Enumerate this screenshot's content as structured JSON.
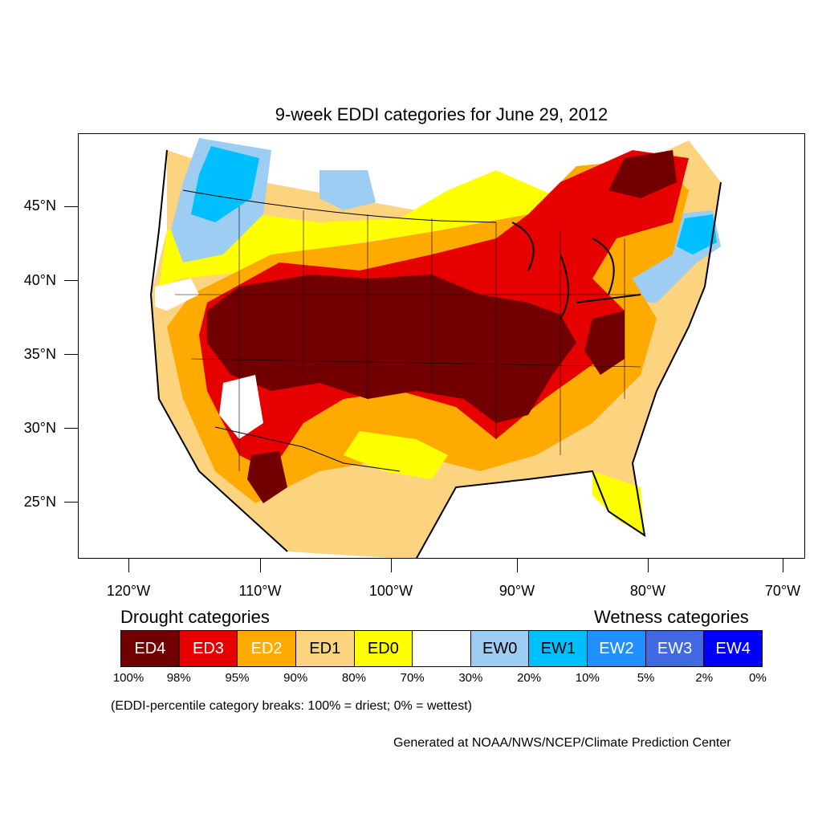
{
  "title": "9-week EDDI categories for June 29, 2012",
  "lat_labels": [
    "45°N",
    "40°N",
    "35°N",
    "30°N",
    "25°N"
  ],
  "lon_labels": [
    "120°W",
    "110°W",
    "100°W",
    "90°W",
    "80°W",
    "70°W"
  ],
  "legend": {
    "drought_heading": "Drought categories",
    "wetness_heading": "Wetness categories",
    "categories": [
      {
        "label": "ED4",
        "color": "#730000",
        "text_color": "#ffffff"
      },
      {
        "label": "ED3",
        "color": "#e60000",
        "text_color": "#ffffff"
      },
      {
        "label": "ED2",
        "color": "#ffaa00",
        "text_color": "#ffffff"
      },
      {
        "label": "ED1",
        "color": "#fcd37f",
        "text_color": "#000000"
      },
      {
        "label": "ED0",
        "color": "#ffff00",
        "text_color": "#000000"
      },
      {
        "label": "",
        "color": "#ffffff",
        "text_color": "#000000"
      },
      {
        "label": "EW0",
        "color": "#9dcdf2",
        "text_color": "#000000"
      },
      {
        "label": "EW1",
        "color": "#00bfff",
        "text_color": "#000000"
      },
      {
        "label": "EW2",
        "color": "#1e90ff",
        "text_color": "#ffffff"
      },
      {
        "label": "EW3",
        "color": "#4169e1",
        "text_color": "#ffffff"
      },
      {
        "label": "EW4",
        "color": "#0000ff",
        "text_color": "#ffffff"
      }
    ],
    "percentiles": [
      "100%",
      "98%",
      "95%",
      "90%",
      "80%",
      "70%",
      "30%",
      "20%",
      "10%",
      "5%",
      "2%",
      "0%"
    ]
  },
  "note": "(EDDI-percentile category breaks: 100% = driest; 0% = wettest)",
  "credit": "Generated at NOAA/NWS/NCEP/Climate Prediction Center"
}
